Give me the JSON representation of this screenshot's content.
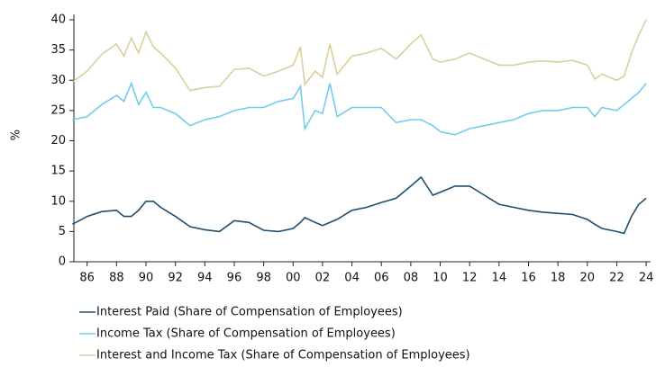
{
  "chart_data": {
    "type": "line",
    "y_label": "%",
    "x": [
      1985,
      1986,
      1987,
      1988,
      1988.5,
      1989,
      1989.5,
      1990,
      1990.5,
      1991,
      1992,
      1993,
      1994,
      1995,
      1996,
      1997,
      1998,
      1999,
      2000,
      2000.5,
      2000.8,
      2001.5,
      2002,
      2002.5,
      2003,
      2004,
      2005,
      2006,
      2007,
      2008,
      2008.7,
      2009.5,
      2010,
      2011,
      2012,
      2013,
      2014,
      2015,
      2016,
      2017,
      2018,
      2019,
      2020,
      2020.5,
      2021,
      2022,
      2022.5,
      2023,
      2023.5,
      2024
    ],
    "series": [
      {
        "name": "Interest Paid (Share of Compensation of Employees)",
        "color": "#1f4e6e",
        "values": [
          6.2,
          7.5,
          8.3,
          8.5,
          7.5,
          7.5,
          8.5,
          10,
          10,
          9,
          7.5,
          5.8,
          5.3,
          5.0,
          6.8,
          6.5,
          5.2,
          5.0,
          5.5,
          6.5,
          7.3,
          6.5,
          6.0,
          6.5,
          7.0,
          8.5,
          9.0,
          9.8,
          10.5,
          12.5,
          14,
          11,
          11.5,
          12.5,
          12.5,
          11,
          9.5,
          9.0,
          8.5,
          8.2,
          8.0,
          7.8,
          7.0,
          6.2,
          5.5,
          5.0,
          4.7,
          7.5,
          9.5,
          10.5
        ]
      },
      {
        "name": "Income Tax (Share of Compensation of Employees)",
        "color": "#72cdea",
        "values": [
          23.5,
          24,
          26,
          27.5,
          26.5,
          29.5,
          26,
          28,
          25.5,
          25.5,
          24.5,
          22.5,
          23.5,
          24,
          25,
          25.5,
          25.5,
          26.5,
          27,
          29,
          22,
          25,
          24.5,
          29.5,
          24,
          25.5,
          25.5,
          25.5,
          23,
          23.5,
          23.5,
          22.5,
          21.5,
          21,
          22,
          22.5,
          23,
          23.5,
          24.5,
          25,
          25,
          25.5,
          25.5,
          24,
          25.5,
          25,
          26,
          27,
          28,
          29.5
        ]
      },
      {
        "name": "Interest and Income Tax (Share of Compensation of Employees)",
        "color": "#d9d09c",
        "values": [
          29.7,
          31.5,
          34.3,
          36,
          34,
          37,
          34.5,
          38,
          35.5,
          34.5,
          32,
          28.3,
          28.8,
          29,
          31.8,
          32,
          30.7,
          31.5,
          32.5,
          35.5,
          29.3,
          31.5,
          30.5,
          36,
          31,
          34,
          34.5,
          35.3,
          33.5,
          36,
          37.5,
          33.5,
          33,
          33.5,
          34.5,
          33.5,
          32.5,
          32.5,
          33,
          33.2,
          33,
          33.3,
          32.5,
          30.2,
          31,
          30,
          30.7,
          34.5,
          37.5,
          40
        ]
      }
    ],
    "xlim": [
      1985.1,
      2024.3
    ],
    "xticks": [
      {
        "value": 1986,
        "label": "86"
      },
      {
        "value": 1988,
        "label": "88"
      },
      {
        "value": 1990,
        "label": "90"
      },
      {
        "value": 1992,
        "label": "92"
      },
      {
        "value": 1994,
        "label": "94"
      },
      {
        "value": 1996,
        "label": "96"
      },
      {
        "value": 1998,
        "label": "98"
      },
      {
        "value": 2000,
        "label": "00"
      },
      {
        "value": 2002,
        "label": "02"
      },
      {
        "value": 2004,
        "label": "04"
      },
      {
        "value": 2006,
        "label": "06"
      },
      {
        "value": 2008,
        "label": "08"
      },
      {
        "value": 2010,
        "label": "10"
      },
      {
        "value": 2012,
        "label": "12"
      },
      {
        "value": 2014,
        "label": "14"
      },
      {
        "value": 2016,
        "label": "16"
      },
      {
        "value": 2018,
        "label": "18"
      },
      {
        "value": 2020,
        "label": "20"
      },
      {
        "value": 2022,
        "label": "22"
      },
      {
        "value": 2024,
        "label": "24"
      }
    ],
    "ylim": [
      0,
      40
    ],
    "yticks": [
      0,
      5,
      10,
      15,
      20,
      25,
      30,
      35,
      40
    ],
    "grid": false
  }
}
